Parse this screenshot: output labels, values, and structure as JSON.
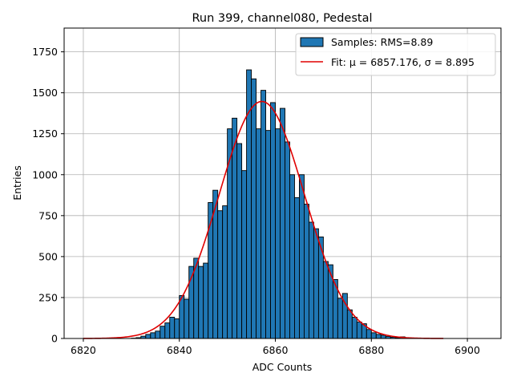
{
  "chart_data": {
    "type": "bar",
    "title": "Run 399, channel080, Pedestal",
    "xlabel": "ADC Counts",
    "ylabel": "Entries",
    "xlim": [
      6816,
      6907
    ],
    "ylim": [
      0,
      1895
    ],
    "xticks": [
      6820,
      6840,
      6860,
      6880,
      6900
    ],
    "yticks": [
      0,
      250,
      500,
      750,
      1000,
      1250,
      1500,
      1750
    ],
    "grid": true,
    "legend_position": "top-right",
    "colors": {
      "bars": "#1f77b4",
      "bar_edge": "#000000",
      "fit": "#e00000",
      "grid": "#b0b0b0"
    },
    "histogram": {
      "name": "Samples: RMS=8.89",
      "bin_start": 6830,
      "bin_width": 1,
      "counts": [
        2,
        5,
        14,
        25,
        35,
        45,
        75,
        95,
        130,
        120,
        262,
        240,
        440,
        490,
        440,
        460,
        830,
        905,
        780,
        810,
        1280,
        1345,
        1190,
        1025,
        1640,
        1585,
        1280,
        1515,
        1270,
        1440,
        1280,
        1405,
        1200,
        1000,
        860,
        1000,
        820,
        710,
        670,
        620,
        470,
        450,
        360,
        245,
        275,
        175,
        130,
        100,
        90,
        55,
        35,
        25,
        20,
        12,
        8,
        5,
        10
      ]
    },
    "fit": {
      "name": "Fit: μ = 6857.176, σ = 8.895",
      "mu": 6857.176,
      "sigma": 8.895,
      "amplitude": 1447,
      "x_range": [
        6820,
        6895
      ]
    }
  }
}
